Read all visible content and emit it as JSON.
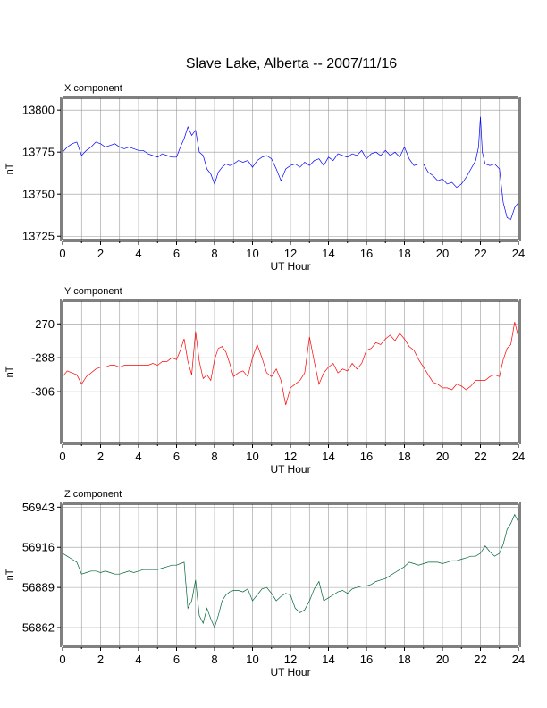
{
  "page": {
    "title": "Slave Lake, Alberta -- 2007/11/16"
  },
  "colors": {
    "x": "#0000ff",
    "y": "#ff0000",
    "z": "#006633",
    "grid": "#999999",
    "frame": "#000000"
  },
  "chart_data": [
    {
      "type": "line",
      "title": "X component",
      "xlabel": "UT Hour",
      "ylabel": "nT",
      "xlim": [
        0,
        24
      ],
      "ylim": [
        13723,
        13807
      ],
      "xticks": [
        0,
        2,
        4,
        6,
        8,
        10,
        12,
        14,
        16,
        18,
        20,
        22,
        24
      ],
      "yticks": [
        13725,
        13750,
        13775,
        13800
      ],
      "grid": true,
      "series": [
        {
          "color": "#0000ff",
          "x": [
            0,
            0.25,
            0.5,
            0.75,
            1.0,
            1.25,
            1.5,
            1.75,
            2.0,
            2.25,
            2.5,
            2.75,
            3.0,
            3.25,
            3.5,
            3.75,
            4.0,
            4.25,
            4.5,
            4.75,
            5.0,
            5.25,
            5.5,
            5.75,
            6.0,
            6.2,
            6.4,
            6.6,
            6.8,
            7.0,
            7.2,
            7.4,
            7.6,
            7.8,
            8.0,
            8.2,
            8.4,
            8.6,
            8.8,
            9.0,
            9.25,
            9.5,
            9.75,
            10.0,
            10.25,
            10.5,
            10.75,
            11.0,
            11.25,
            11.5,
            11.75,
            12.0,
            12.25,
            12.5,
            12.75,
            13.0,
            13.25,
            13.5,
            13.75,
            14.0,
            14.25,
            14.5,
            14.75,
            15.0,
            15.25,
            15.5,
            15.75,
            16.0,
            16.25,
            16.5,
            16.75,
            17.0,
            17.25,
            17.5,
            17.75,
            18.0,
            18.25,
            18.5,
            18.75,
            19.0,
            19.25,
            19.5,
            19.75,
            20.0,
            20.25,
            20.5,
            20.75,
            21.0,
            21.25,
            21.5,
            21.75,
            21.9,
            22.0,
            22.1,
            22.25,
            22.5,
            22.75,
            23.0,
            23.2,
            23.4,
            23.6,
            23.8,
            24.0
          ],
          "values": [
            13775,
            13778,
            13780,
            13781,
            13773,
            13776,
            13778,
            13781,
            13780,
            13778,
            13779,
            13780,
            13778,
            13777,
            13778,
            13777,
            13776,
            13776,
            13774,
            13773,
            13772,
            13774,
            13773,
            13772,
            13772,
            13778,
            13783,
            13790,
            13785,
            13788,
            13775,
            13773,
            13765,
            13762,
            13756,
            13763,
            13766,
            13768,
            13767,
            13768,
            13770,
            13769,
            13770,
            13766,
            13770,
            13772,
            13773,
            13771,
            13765,
            13758,
            13765,
            13767,
            13768,
            13766,
            13769,
            13767,
            13770,
            13771,
            13767,
            13772,
            13770,
            13774,
            13773,
            13772,
            13774,
            13773,
            13776,
            13771,
            13774,
            13775,
            13773,
            13776,
            13773,
            13775,
            13772,
            13778,
            13771,
            13767,
            13768,
            13768,
            13763,
            13761,
            13758,
            13759,
            13756,
            13757,
            13754,
            13756,
            13760,
            13765,
            13770,
            13778,
            13796,
            13775,
            13768,
            13767,
            13768,
            13765,
            13745,
            13736,
            13735,
            13742,
            13745
          ]
        }
      ]
    },
    {
      "type": "line",
      "title": "Y component",
      "xlabel": "UT Hour",
      "ylabel": "nT",
      "xlim": [
        0,
        24
      ],
      "ylim": [
        -333,
        -258
      ],
      "xticks": [
        0,
        2,
        4,
        6,
        8,
        10,
        12,
        14,
        16,
        18,
        20,
        22,
        24
      ],
      "yticks": [
        -270,
        -288,
        -306
      ],
      "grid": true,
      "series": [
        {
          "color": "#ff0000",
          "x": [
            0,
            0.25,
            0.5,
            0.75,
            1.0,
            1.25,
            1.5,
            1.75,
            2.0,
            2.25,
            2.5,
            2.75,
            3.0,
            3.25,
            3.5,
            3.75,
            4.0,
            4.25,
            4.5,
            4.75,
            5.0,
            5.25,
            5.5,
            5.75,
            6.0,
            6.2,
            6.4,
            6.6,
            6.8,
            7.0,
            7.2,
            7.4,
            7.6,
            7.8,
            8.0,
            8.2,
            8.4,
            8.6,
            8.8,
            9.0,
            9.25,
            9.5,
            9.75,
            10.0,
            10.25,
            10.5,
            10.75,
            11.0,
            11.25,
            11.5,
            11.75,
            12.0,
            12.25,
            12.5,
            12.75,
            13.0,
            13.25,
            13.5,
            13.75,
            14.0,
            14.25,
            14.5,
            14.75,
            15.0,
            15.25,
            15.5,
            15.75,
            16.0,
            16.25,
            16.5,
            16.75,
            17.0,
            17.25,
            17.5,
            17.75,
            18.0,
            18.25,
            18.5,
            18.75,
            19.0,
            19.25,
            19.5,
            19.75,
            20.0,
            20.25,
            20.5,
            20.75,
            21.0,
            21.25,
            21.5,
            21.75,
            22.0,
            22.25,
            22.5,
            22.75,
            23.0,
            23.2,
            23.4,
            23.6,
            23.8,
            24.0
          ],
          "values": [
            -298,
            -295,
            -296,
            -297,
            -302,
            -298,
            -296,
            -294,
            -293,
            -293,
            -292,
            -292,
            -293,
            -292,
            -292,
            -292,
            -292,
            -292,
            -292,
            -291,
            -292,
            -290,
            -290,
            -288,
            -289,
            -284,
            -278,
            -290,
            -297,
            -274,
            -290,
            -299,
            -297,
            -300,
            -289,
            -283,
            -282,
            -285,
            -291,
            -298,
            -296,
            -295,
            -298,
            -288,
            -281,
            -288,
            -296,
            -298,
            -294,
            -300,
            -313,
            -304,
            -302,
            -300,
            -296,
            -277,
            -290,
            -302,
            -296,
            -293,
            -291,
            -296,
            -294,
            -295,
            -291,
            -294,
            -291,
            -284,
            -283,
            -280,
            -281,
            -278,
            -276,
            -279,
            -275,
            -278,
            -282,
            -284,
            -289,
            -293,
            -297,
            -301,
            -302,
            -304,
            -304,
            -305,
            -302,
            -303,
            -305,
            -303,
            -300,
            -300,
            -300,
            -298,
            -297,
            -298,
            -289,
            -283,
            -281,
            -269,
            -277
          ]
        }
      ]
    },
    {
      "type": "line",
      "title": "Z component",
      "xlabel": "UT Hour",
      "ylabel": "nT",
      "xlim": [
        0,
        24
      ],
      "ylim": [
        56850,
        56945
      ],
      "xticks": [
        0,
        2,
        4,
        6,
        8,
        10,
        12,
        14,
        16,
        18,
        20,
        22,
        24
      ],
      "yticks": [
        56862,
        56889,
        56916,
        56943
      ],
      "grid": true,
      "series": [
        {
          "color": "#006633",
          "x": [
            0,
            0.25,
            0.5,
            0.75,
            1.0,
            1.25,
            1.5,
            1.75,
            2.0,
            2.25,
            2.5,
            2.75,
            3.0,
            3.25,
            3.5,
            3.75,
            4.0,
            4.25,
            4.5,
            4.75,
            5.0,
            5.25,
            5.5,
            5.75,
            6.0,
            6.2,
            6.4,
            6.6,
            6.8,
            7.0,
            7.2,
            7.4,
            7.6,
            7.8,
            8.0,
            8.2,
            8.4,
            8.6,
            8.8,
            9.0,
            9.25,
            9.5,
            9.75,
            10.0,
            10.25,
            10.5,
            10.75,
            11.0,
            11.25,
            11.5,
            11.75,
            12.0,
            12.25,
            12.5,
            12.75,
            13.0,
            13.25,
            13.5,
            13.75,
            14.0,
            14.25,
            14.5,
            14.75,
            15.0,
            15.25,
            15.5,
            15.75,
            16.0,
            16.25,
            16.5,
            16.75,
            17.0,
            17.25,
            17.5,
            17.75,
            18.0,
            18.25,
            18.5,
            18.75,
            19.0,
            19.25,
            19.5,
            19.75,
            20.0,
            20.25,
            20.5,
            20.75,
            21.0,
            21.25,
            21.5,
            21.75,
            22.0,
            22.25,
            22.5,
            22.75,
            23.0,
            23.2,
            23.4,
            23.6,
            23.8,
            24.0
          ],
          "values": [
            56912,
            56910,
            56908,
            56906,
            56898,
            56899,
            56900,
            56900,
            56899,
            56900,
            56899,
            56898,
            56898,
            56899,
            56900,
            56899,
            56900,
            56901,
            56901,
            56901,
            56901,
            56902,
            56903,
            56904,
            56904,
            56905,
            56906,
            56875,
            56880,
            56894,
            56870,
            56865,
            56875,
            56868,
            56862,
            56870,
            56880,
            56884,
            56886,
            56887,
            56887,
            56886,
            56888,
            56880,
            56884,
            56888,
            56889,
            56885,
            56880,
            56883,
            56885,
            56884,
            56875,
            56872,
            56874,
            56880,
            56888,
            56893,
            56880,
            56882,
            56884,
            56886,
            56887,
            56885,
            56888,
            56889,
            56890,
            56890,
            56891,
            56893,
            56894,
            56895,
            56897,
            56899,
            56901,
            56903,
            56906,
            56905,
            56904,
            56905,
            56906,
            56906,
            56906,
            56905,
            56906,
            56907,
            56907,
            56908,
            56909,
            56910,
            56910,
            56912,
            56917,
            56913,
            56910,
            56912,
            56918,
            56928,
            56932,
            56938,
            56933
          ]
        }
      ]
    }
  ]
}
